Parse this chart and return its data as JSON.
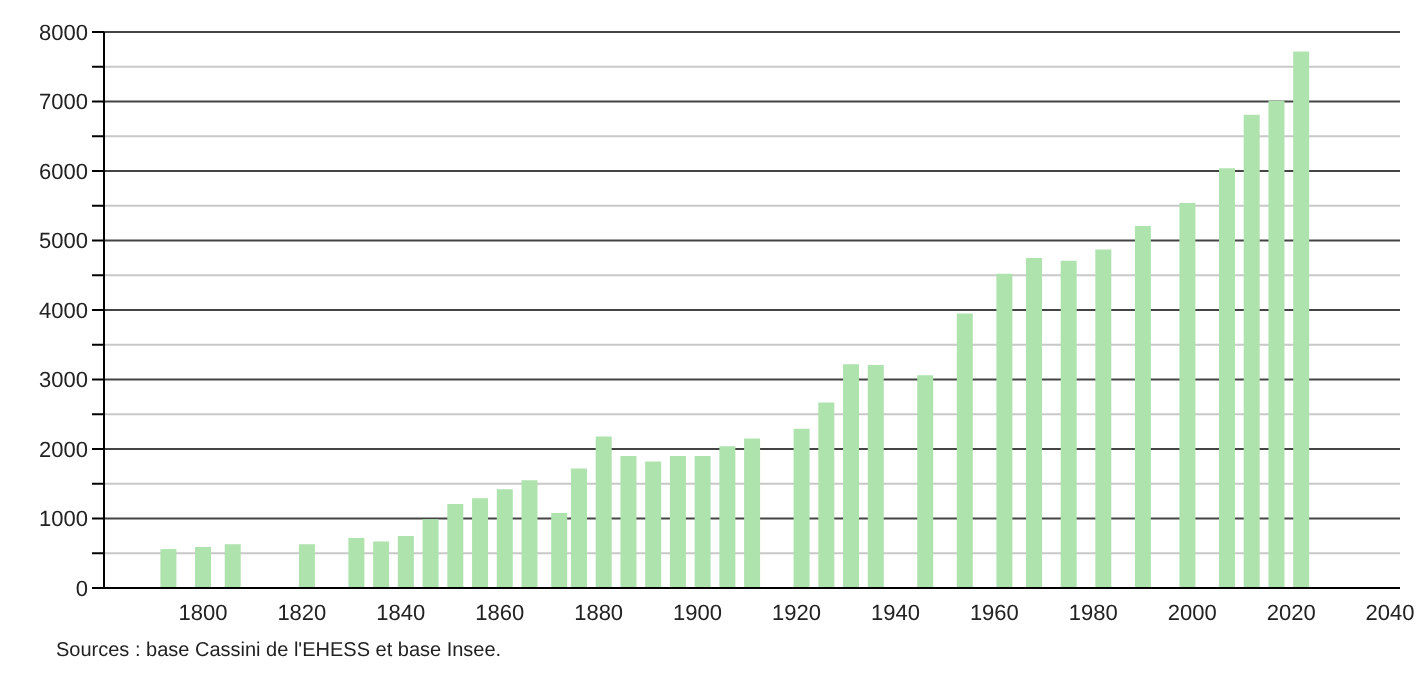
{
  "chart_data": {
    "type": "bar",
    "annotations": [
      "Sources : base Cassini de l'EHESS et base Insee."
    ],
    "x": [
      1793,
      1800,
      1806,
      1821,
      1831,
      1836,
      1841,
      1846,
      1851,
      1856,
      1861,
      1866,
      1872,
      1876,
      1881,
      1886,
      1891,
      1896,
      1901,
      1906,
      1911,
      1921,
      1926,
      1931,
      1936,
      1946,
      1954,
      1962,
      1968,
      1975,
      1982,
      1990,
      1999,
      2007,
      2012,
      2017,
      2022
    ],
    "values": [
      560,
      590,
      630,
      630,
      720,
      670,
      750,
      990,
      1210,
      1290,
      1420,
      1550,
      1080,
      1720,
      2180,
      1900,
      1820,
      1900,
      1900,
      2040,
      2150,
      2290,
      2670,
      3220,
      3210,
      3060,
      3950,
      4520,
      4750,
      4710,
      4870,
      5210,
      5540,
      6040,
      6810,
      7010,
      7720
    ],
    "color": "#aee3ae",
    "xlim": [
      1780,
      2042
    ],
    "xticks": [
      1800,
      1820,
      1840,
      1860,
      1880,
      1900,
      1920,
      1940,
      1960,
      1980,
      2000,
      2020,
      2040
    ],
    "ylim": [
      0,
      8000
    ],
    "yticks": [
      0,
      {
        "value": 500,
        "label": null
      },
      1000,
      {
        "value": 1500,
        "label": null
      },
      2000,
      {
        "value": 2500,
        "label": null
      },
      3000,
      {
        "value": 3500,
        "label": null
      },
      4000,
      {
        "value": 4500,
        "label": null
      },
      5000,
      {
        "value": 5500,
        "label": null
      },
      6000,
      {
        "value": 6500,
        "label": null
      },
      7000,
      {
        "value": 7500,
        "label": null
      },
      8000
    ],
    "grid": "y",
    "legend": false
  }
}
